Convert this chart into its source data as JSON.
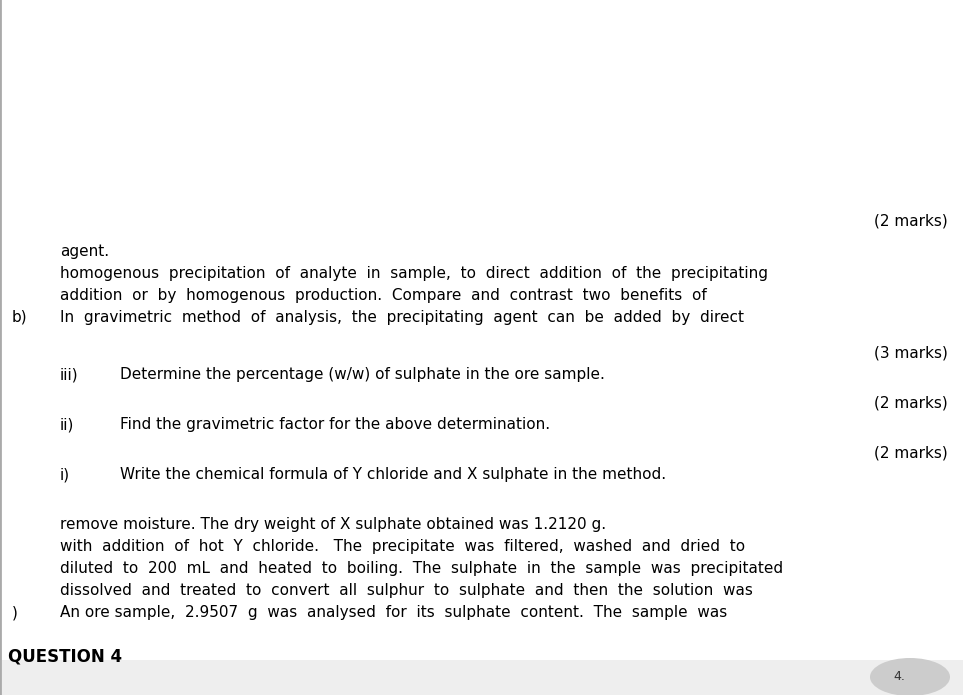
{
  "bg_color": "#ffffff",
  "header_bg_color": "#eeeeee",
  "text_color": "#000000",
  "page_number": "4.",
  "question_header": "QUESTION 4",
  "part_a_label": ")",
  "part_a_text_lines": [
    "An ore sample,  2.9507  g  was  analysed  for  its  sulphate  content.  The  sample  was",
    "dissolved  and  treated  to  convert  all  sulphur  to  sulphate  and  then  the  solution  was",
    "diluted  to  200  mL  and  heated  to  boiling.  The  sulphate  in  the  sample  was  precipitated",
    "with  addition  of  hot  Y  chloride.   The  precipitate  was  filtered,  washed  and  dried  to",
    "remove moisture. The dry weight of X sulphate obtained was 1.2120 g."
  ],
  "sub_i_label": "i)",
  "sub_i_text": "Write the chemical formula of Y chloride and X sulphate in the method.",
  "sub_i_marks": "(2 marks)",
  "sub_ii_label": "ii)",
  "sub_ii_text": "Find the gravimetric factor for the above determination.",
  "sub_ii_marks": "(2 marks)",
  "sub_iii_label": "iii)",
  "sub_iii_text": "Determine the percentage (w/w) of sulphate in the ore sample.",
  "sub_iii_marks": "(3 marks)",
  "part_b_label": "b)",
  "part_b_text_lines": [
    "In  gravimetric  method  of  analysis,  the  precipitating  agent  can  be  added  by  direct",
    "addition  or  by  homogenous  production.  Compare  and  contrast  two  benefits  of",
    "homogenous  precipitation  of  analyte  in  sample,  to  direct  addition  of  the  precipitating",
    "agent."
  ],
  "part_b_marks": "(2 marks)",
  "font_size_header": 12,
  "font_size_body": 11,
  "font_size_marks": 11
}
